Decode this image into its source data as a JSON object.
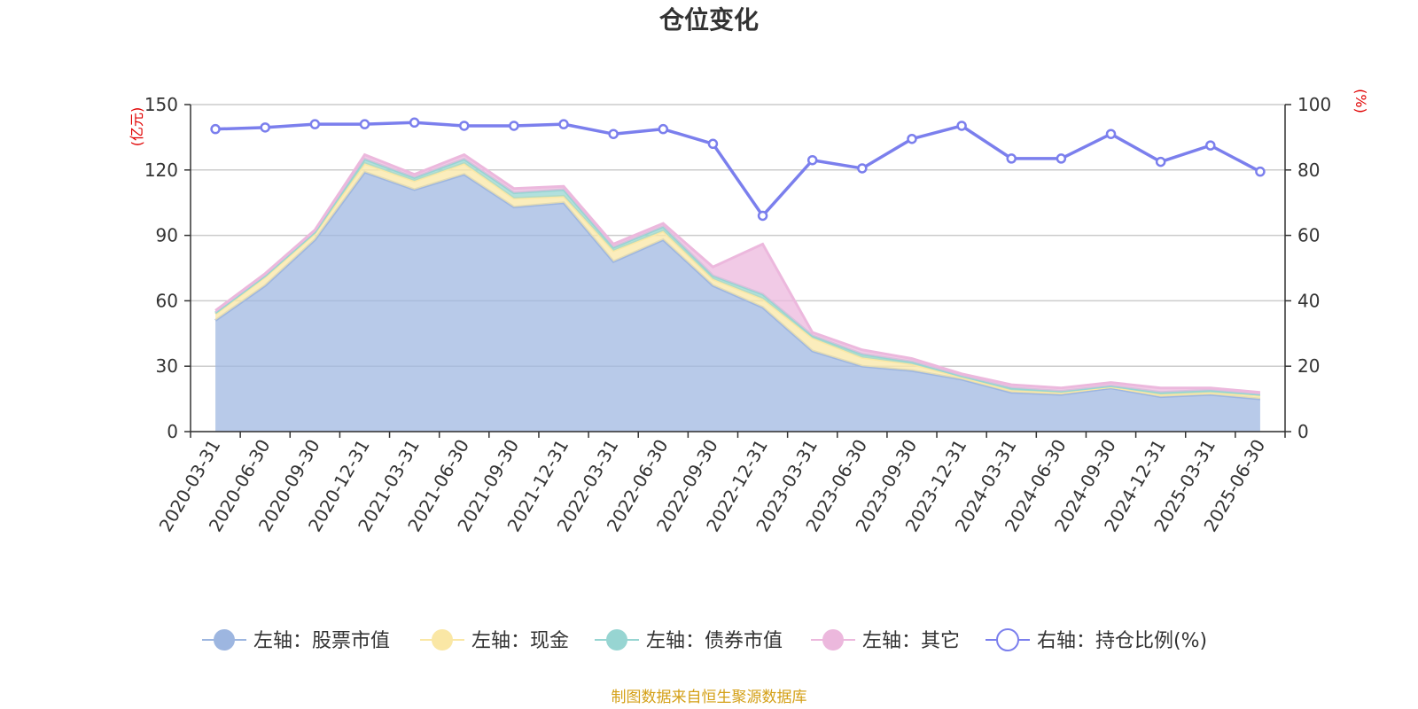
{
  "chart_data": {
    "type": "area",
    "title": "仓位变化",
    "left_axis_unit": "(亿元)",
    "right_axis_unit": "(%)",
    "left_ylim": [
      0,
      150
    ],
    "left_ticks": [
      "0",
      "30",
      "60",
      "90",
      "120",
      "150"
    ],
    "right_ylim": [
      0,
      100
    ],
    "right_ticks": [
      "0",
      "20",
      "40",
      "60",
      "80",
      "100"
    ],
    "grid": true,
    "legend_position": "bottom",
    "categories": [
      "2020-03-31",
      "2020-06-30",
      "2020-09-30",
      "2020-12-31",
      "2021-03-31",
      "2021-06-30",
      "2021-09-30",
      "2021-12-31",
      "2022-03-31",
      "2022-06-30",
      "2022-09-30",
      "2022-12-31",
      "2023-03-31",
      "2023-06-30",
      "2023-09-30",
      "2023-12-31",
      "2024-03-31",
      "2024-06-30",
      "2024-09-30",
      "2024-12-31",
      "2025-03-31",
      "2025-06-30"
    ],
    "series": [
      {
        "name": "左轴：股票市值",
        "axis": "left",
        "kind": "stacked-area",
        "color": "#9db6e0",
        "values": [
          51,
          67,
          88,
          119,
          111,
          118,
          103,
          105,
          78,
          88,
          67,
          57,
          37,
          30,
          28,
          24,
          18,
          17,
          20,
          16,
          17,
          15
        ]
      },
      {
        "name": "左轴：现金",
        "axis": "left",
        "kind": "stacked-area",
        "color": "#fae7a5",
        "values": [
          3,
          4,
          3,
          4,
          4,
          5,
          4,
          3,
          5,
          4,
          3,
          4,
          6,
          4,
          3,
          1,
          1,
          1,
          0.5,
          1,
          1,
          1.5
        ]
      },
      {
        "name": "左轴：债券市值",
        "axis": "left",
        "kind": "stacked-area",
        "color": "#97d5d2",
        "values": [
          0.5,
          0.5,
          0.5,
          2,
          1.5,
          2,
          2.5,
          3,
          1.5,
          2,
          1.5,
          2,
          1,
          1.5,
          1,
          0.5,
          1,
          0.5,
          0.5,
          1,
          1,
          0.5
        ]
      },
      {
        "name": "左轴：其它",
        "axis": "left",
        "kind": "stacked-area",
        "color": "#ecb8dd",
        "values": [
          1,
          1,
          1,
          2,
          1.5,
          2,
          2,
          1.5,
          1.5,
          1.5,
          4,
          23,
          1.5,
          2,
          1.5,
          1,
          1.5,
          1.5,
          1.5,
          2,
          1,
          1
        ]
      },
      {
        "name": "右轴：持仓比例(%)",
        "axis": "right",
        "kind": "line",
        "color": "#7b7fed",
        "values": [
          92.5,
          93,
          94,
          94,
          94.5,
          93.5,
          93.5,
          94,
          91,
          92.5,
          88,
          66,
          83,
          80.5,
          89.5,
          93.5,
          83.5,
          83.5,
          91,
          82.5,
          87.5,
          79.5
        ]
      }
    ]
  },
  "source_text": "制图数据来自恒生聚源数据库"
}
